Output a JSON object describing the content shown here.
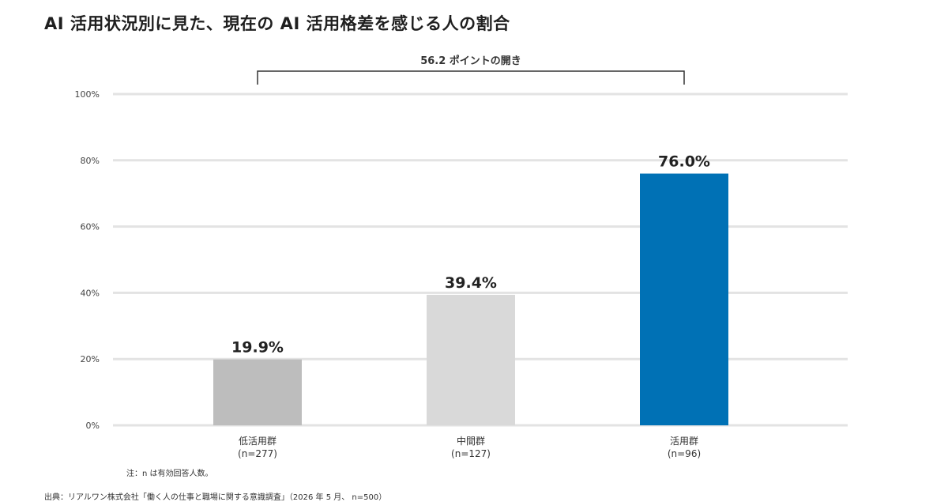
{
  "chart_data": {
    "type": "bar",
    "title": "AI 活用状況別に見た、現在の AI 活用格差を感じる人の割合",
    "categories": [
      "低活用群",
      "中間群",
      "活用群"
    ],
    "sample_sizes": [
      "(n=277)",
      "(n=127)",
      "(n=96)"
    ],
    "values": [
      19.9,
      39.4,
      76.0
    ],
    "data_labels": [
      "19.9%",
      "39.4%",
      "76.0%"
    ],
    "bar_colors": [
      "#bdbdbd",
      "#d9d9d9",
      "#0071b5"
    ],
    "ylim": [
      0,
      100
    ],
    "yticks": [
      0,
      20,
      40,
      60,
      80,
      100
    ],
    "ytick_labels": [
      "0%",
      "20%",
      "40%",
      "60%",
      "80%",
      "100%"
    ],
    "grid": true,
    "annotation": "56.2 ポイントの開き",
    "xlabel": "",
    "ylabel": ""
  },
  "footnote": {
    "note": "注：n は有効回答人数。",
    "source": "出典：リアルワン株式会社「働く人の仕事と職場に関する意識調査」（2026 年 5 月、 n=500）"
  }
}
